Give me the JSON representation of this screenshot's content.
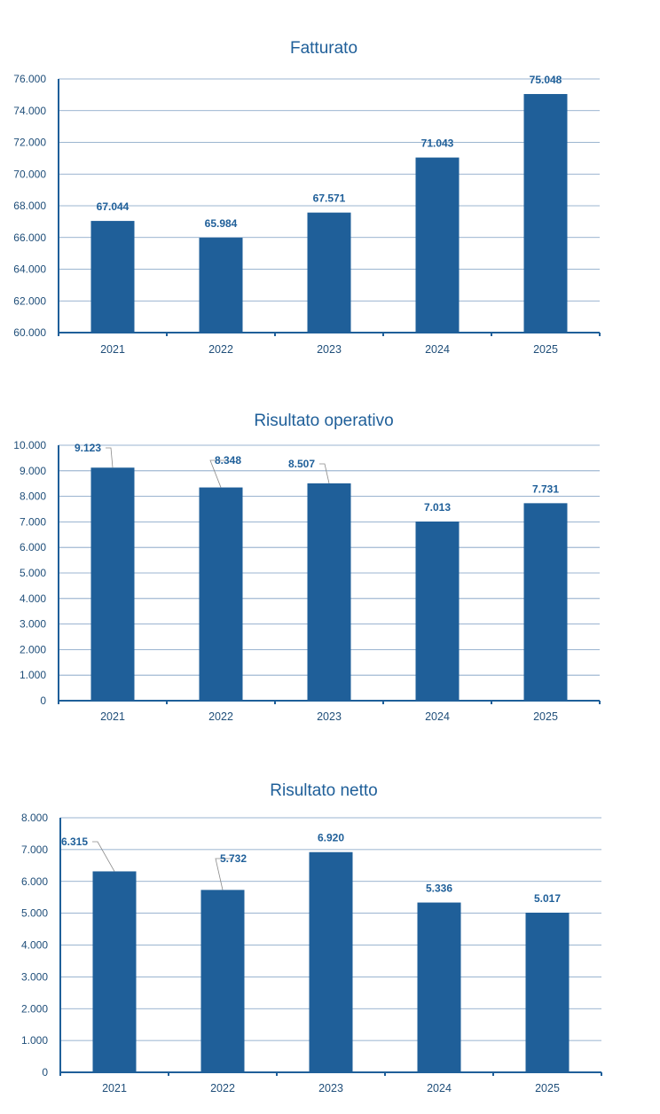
{
  "chart_data": [
    {
      "type": "bar",
      "title": "Fatturato",
      "categories": [
        "2021",
        "2022",
        "2023",
        "2024",
        "2025"
      ],
      "values": [
        67044,
        65984,
        67571,
        71043,
        75048
      ],
      "value_labels": [
        "67.044",
        "65.984",
        "67.571",
        "71.043",
        "75.048"
      ],
      "ylim": [
        60000,
        76000
      ],
      "yticks": [
        60000,
        62000,
        64000,
        66000,
        68000,
        70000,
        72000,
        74000,
        76000
      ],
      "ytick_labels": [
        "60.000",
        "62.000",
        "64.000",
        "66.000",
        "68.000",
        "70.000",
        "72.000",
        "74.000",
        "76.000"
      ],
      "grid": true,
      "bar_color": "#1f5f99"
    },
    {
      "type": "bar",
      "title": "Risultato operativo",
      "categories": [
        "2021",
        "2022",
        "2023",
        "2024",
        "2025"
      ],
      "values": [
        9123,
        8348,
        8507,
        7013,
        7731
      ],
      "value_labels": [
        "9.123",
        "8.348",
        "8.507",
        "7.013",
        "7.731"
      ],
      "ylim": [
        0,
        10000
      ],
      "yticks": [
        0,
        1000,
        2000,
        3000,
        4000,
        5000,
        6000,
        7000,
        8000,
        9000,
        10000
      ],
      "ytick_labels": [
        "0",
        "1.000",
        "2.000",
        "3.000",
        "4.000",
        "5.000",
        "6.000",
        "7.000",
        "8.000",
        "9.000",
        "10.000"
      ],
      "grid": true,
      "bar_color": "#1f5f99"
    },
    {
      "type": "bar",
      "title": "Risultato netto",
      "categories": [
        "2021",
        "2022",
        "2023",
        "2024",
        "2025"
      ],
      "values": [
        6315,
        5732,
        6920,
        5336,
        5017
      ],
      "value_labels": [
        "6.315",
        "5.732",
        "6.920",
        "5.336",
        "5.017"
      ],
      "ylim": [
        0,
        8000
      ],
      "yticks": [
        0,
        1000,
        2000,
        3000,
        4000,
        5000,
        6000,
        7000,
        8000
      ],
      "ytick_labels": [
        "0",
        "1.000",
        "2.000",
        "3.000",
        "4.000",
        "5.000",
        "6.000",
        "7.000",
        "8.000"
      ],
      "grid": true,
      "bar_color": "#1f5f99"
    }
  ]
}
